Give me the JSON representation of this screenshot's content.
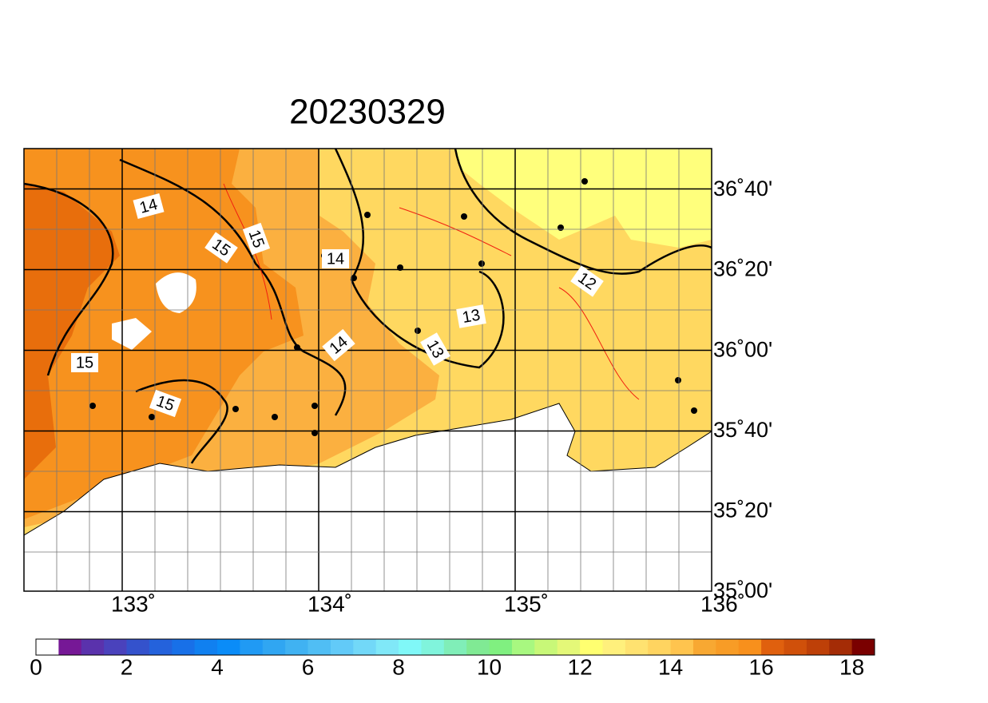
{
  "title": "20230329",
  "map": {
    "lon_labels": [
      "133˚",
      "134˚",
      "135˚",
      "136˚"
    ],
    "lat_labels": [
      "36˚40'",
      "36˚20'",
      "36˚00'",
      "35˚40'",
      "35˚20'",
      "35˚00'"
    ],
    "contour_labels": [
      "14",
      "15",
      "15",
      "14",
      "14",
      "13",
      "13",
      "12",
      "15",
      "15"
    ]
  },
  "colorbar": {
    "labels": [
      0,
      2,
      4,
      6,
      8,
      10,
      12,
      14,
      16,
      18
    ],
    "colors": [
      "#ffffff",
      "#761896",
      "#5a32ac",
      "#4a42bc",
      "#3452cc",
      "#2462dc",
      "#1870e8",
      "#1080f0",
      "#0a8cf8",
      "#209af4",
      "#30a6f2",
      "#40b2f2",
      "#50bef4",
      "#62caf8",
      "#72d8f8",
      "#80e8f8",
      "#80f8f8",
      "#80f4dc",
      "#80eeb8",
      "#80ea94",
      "#80f080",
      "#a8f880",
      "#c8f878",
      "#e4f878",
      "#ffff70",
      "#fff07c",
      "#ffe270",
      "#ffd460",
      "#ffc44e",
      "#f8a832",
      "#f89c26",
      "#f8901c",
      "#e0600e",
      "#d0500a",
      "#be4008",
      "#a42c06",
      "#7a0000"
    ]
  }
}
